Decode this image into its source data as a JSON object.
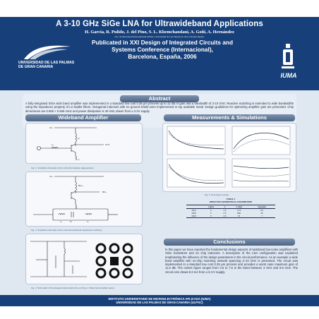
{
  "header": {
    "title": "A 3-10 GHz SiGe LNA for Ultrawideband Applications",
    "authors": "H. García, R. Pulido, J. del Pino, S. L. Khemchandani, A. Goñi, A. Hernández",
    "affiliations": "Inst. de Microelectrónica Aplicada (IUMA), Universidad de Las Palmas de Gran Canaria (Spain)",
    "conference": [
      "Publicated in XXI Design of Integrated Circuits and",
      "Systems Conference (Internacional),",
      "Barcelona, España, 2006"
    ]
  },
  "logos": {
    "ulpgc": [
      "UNIVERSIDAD DE LAS PALMAS",
      "DE GRAN CANARIA"
    ],
    "iuma": "IUMA"
  },
  "sections": {
    "abstract_title": "Abstract",
    "abstract_text": "A fully-integrated SiGe wide band amplifier was implemented in a standard low cost 0.35 µm process up to 12 dB of gain and a bandwidth of 3-10 GHz. Reactive matching is extended to wide bandwidths using the impedance property of LC-ladder filters. Octagonal inductors with no ground shield were implemented in top available metal. Design guidelines for optimizing amplifier gain are presented. Chip dimensions are 0.665 × 0.665 mm2 and power dissipation is 39 mW, drawn from a 3.3V supply.",
    "wideband_title": "Wideband Amplifier",
    "measurements_title": "Measurements & Simulations",
    "conclusions_title": "Conclusions",
    "conclusions_text": "In this paper we have reported the fundamental design aspects of wideband low-noise amplifiers with SiGe transistors and on chip inductors. A description of the LNA configuration was explained emphasizing the influence of the design parameters in the circuit performance. As an example a wide band amplifier with on-chip matching network spanning 3–10 GHz is presented. The circuit was implemented in a standard low cost 0.35 µm process and provides a worst case maximum gain of 11.6 dB. The noises figure ranges from 3.5 to 7.5 in the band between 3 GHz and 9.5 GHz. The circuit core draws 8.3 mA from a 3.3-V supply."
  },
  "figures": {
    "fig1": "Fig. 1. Simplified schematic of the LNA with inductive degeneration.",
    "fig2": "Fig. 2. Simplified schematic of the LNA with wideband impedance matching.",
    "fig3": "Fig. 3. Schematic of the designed wide band LNA, and Fig. 4. Wide band amplifier layout.",
    "fig5": "Fig. 5. Post-layout results."
  },
  "table": {
    "title": "TABLE 1",
    "subtitle": "INDUCTOR GEOMETRICAL PARAMETERS",
    "headers": [
      "",
      "r (µm)",
      "n",
      "L (nH)",
      "Q (peak)"
    ],
    "rows": [
      [
        "IND1",
        "0",
        "4.5",
        "0.74",
        "8.5"
      ],
      [
        "IND2",
        "0",
        "2.5",
        "800",
        "35"
      ],
      [
        "IND3",
        "0",
        "4.5",
        "76",
        "7"
      ]
    ]
  },
  "footer": [
    "INSTITUTO UNIVERSITARIO DE MICROELECTRÓNICA APLICADA (IUMA)",
    "UNIVERSIDAD DE LAS PALMAS DE GRAN CANARIA (ULPGC)"
  ]
}
